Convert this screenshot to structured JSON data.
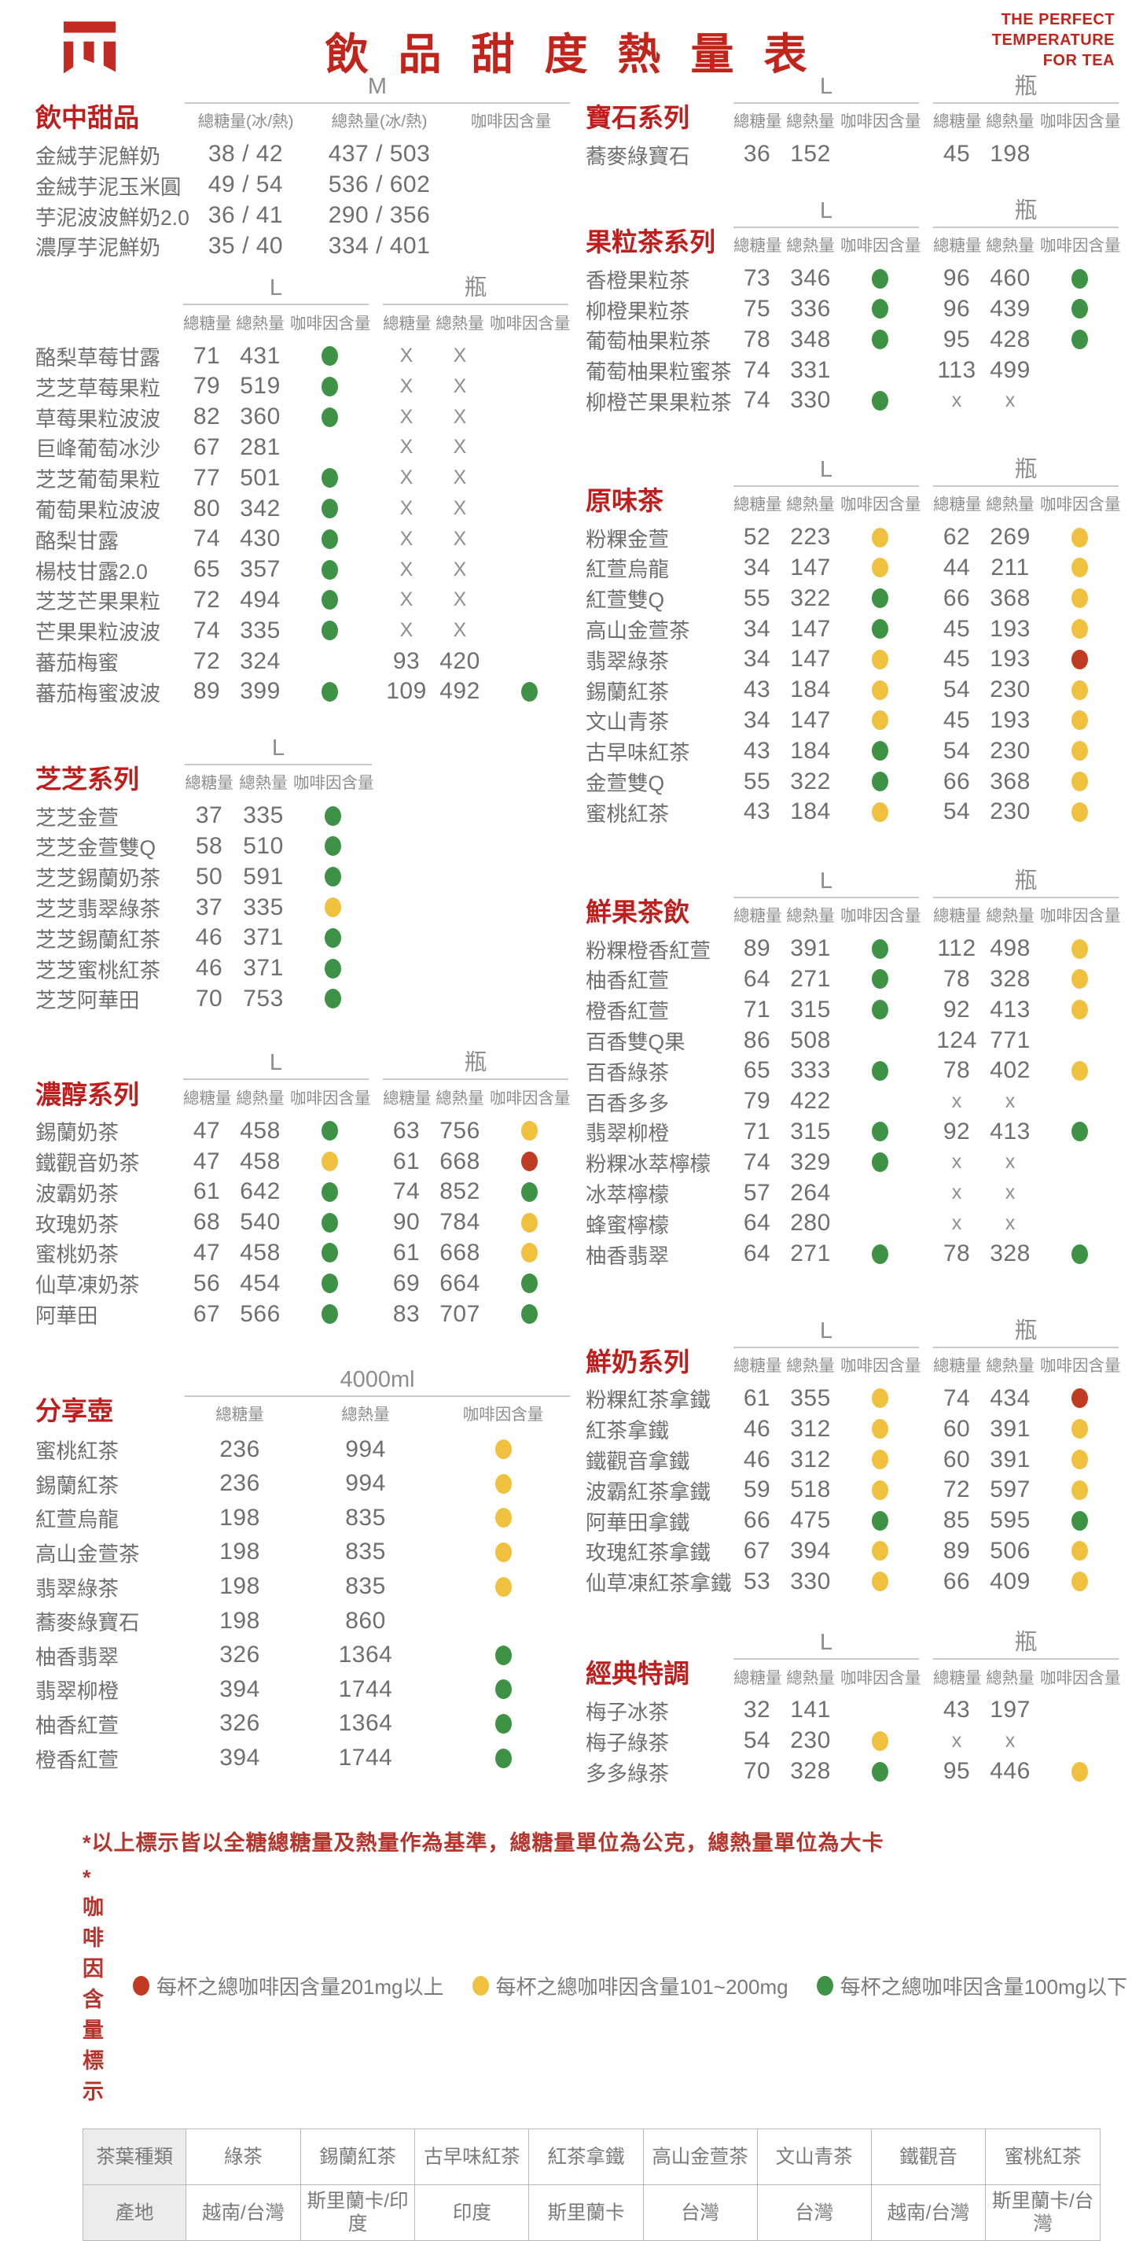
{
  "header": {
    "title": "飲品甜度熱量表",
    "tagline": [
      "THE PERFECT",
      "TEMPERATURE",
      "FOR TEA"
    ]
  },
  "columns": {
    "std": [
      "總糖量",
      "總熱量",
      "咖啡因含量"
    ],
    "m": [
      "總糖量(冰/熱)",
      "總熱量(冰/熱)",
      "咖啡因含量"
    ]
  },
  "colors": {
    "g": "#3e9245",
    "y": "#f0c13f",
    "r": "#c13a22"
  },
  "dot_names": {
    "g": "caffeine-dot-green",
    "y": "caffeine-dot-yellow",
    "r": "caffeine-dot-red"
  },
  "left_blocks": [
    {
      "title": "飲中甜品",
      "layout": "m",
      "groups": [
        "M"
      ],
      "cols": "m",
      "rows": [
        [
          "金絨芋泥鮮奶",
          "38 / 42",
          "437 / 503",
          ""
        ],
        [
          "金絨芋泥玉米圓",
          "49 / 54",
          "536 / 602",
          ""
        ],
        [
          "芋泥波波鮮奶2.0",
          "36 / 41",
          "290 / 356",
          ""
        ],
        [
          "濃厚芋泥鮮奶",
          "35 / 40",
          "334 / 401",
          ""
        ]
      ]
    },
    {
      "title": "",
      "layout": "lb",
      "groups": [
        "L",
        "瓶"
      ],
      "cols": "std",
      "rows": [
        [
          "酪梨草莓甘露",
          "71",
          "431",
          "g",
          "X",
          "X",
          ""
        ],
        [
          "芝芝草莓果粒",
          "79",
          "519",
          "g",
          "X",
          "X",
          ""
        ],
        [
          "草莓果粒波波",
          "82",
          "360",
          "g",
          "X",
          "X",
          ""
        ],
        [
          "巨峰葡萄冰沙",
          "67",
          "281",
          "",
          "X",
          "X",
          ""
        ],
        [
          "芝芝葡萄果粒",
          "77",
          "501",
          "g",
          "X",
          "X",
          ""
        ],
        [
          "葡萄果粒波波",
          "80",
          "342",
          "g",
          "X",
          "X",
          ""
        ],
        [
          "酪梨甘露",
          "74",
          "430",
          "g",
          "X",
          "X",
          ""
        ],
        [
          "楊枝甘露2.0",
          "65",
          "357",
          "g",
          "X",
          "X",
          ""
        ],
        [
          "芝芝芒果果粒",
          "72",
          "494",
          "g",
          "X",
          "X",
          ""
        ],
        [
          "芒果果粒波波",
          "74",
          "335",
          "g",
          "X",
          "X",
          ""
        ],
        [
          "蕃茄梅蜜",
          "72",
          "324",
          "",
          "93",
          "420",
          ""
        ],
        [
          "蕃茄梅蜜波波",
          "89",
          "399",
          "g",
          "109",
          "492",
          "g"
        ]
      ]
    },
    {
      "title": "芝芝系列",
      "layout": "l",
      "groups": [
        "L"
      ],
      "cols": "std",
      "rows": [
        [
          "芝芝金萱",
          "37",
          "335",
          "g"
        ],
        [
          "芝芝金萱雙Q",
          "58",
          "510",
          "g"
        ],
        [
          "芝芝錫蘭奶茶",
          "50",
          "591",
          "g"
        ],
        [
          "芝芝翡翠綠茶",
          "37",
          "335",
          "y"
        ],
        [
          "芝芝錫蘭紅茶",
          "46",
          "371",
          "g"
        ],
        [
          "芝芝蜜桃紅茶",
          "46",
          "371",
          "g"
        ],
        [
          "芝芝阿華田",
          "70",
          "753",
          "g"
        ]
      ]
    },
    {
      "title": "濃醇系列",
      "layout": "lb",
      "groups": [
        "L",
        "瓶"
      ],
      "cols": "std",
      "rows": [
        [
          "錫蘭奶茶",
          "47",
          "458",
          "g",
          "63",
          "756",
          "y"
        ],
        [
          "鐵觀音奶茶",
          "47",
          "458",
          "y",
          "61",
          "668",
          "r"
        ],
        [
          "波霸奶茶",
          "61",
          "642",
          "g",
          "74",
          "852",
          "g"
        ],
        [
          "玫瑰奶茶",
          "68",
          "540",
          "g",
          "90",
          "784",
          "y"
        ],
        [
          "蜜桃奶茶",
          "47",
          "458",
          "g",
          "61",
          "668",
          "y"
        ],
        [
          "仙草凍奶茶",
          "56",
          "454",
          "g",
          "69",
          "664",
          "g"
        ],
        [
          "阿華田",
          "67",
          "566",
          "g",
          "83",
          "707",
          "g"
        ]
      ]
    },
    {
      "title": "分享壺",
      "layout": "jug",
      "groups": [
        "4000ml"
      ],
      "cols": "std",
      "rows": [
        [
          "蜜桃紅茶",
          "236",
          "994",
          "y"
        ],
        [
          "錫蘭紅茶",
          "236",
          "994",
          "y"
        ],
        [
          "紅萱烏龍",
          "198",
          "835",
          "y"
        ],
        [
          "高山金萱茶",
          "198",
          "835",
          "y"
        ],
        [
          "翡翠綠茶",
          "198",
          "835",
          "y"
        ],
        [
          "蕎麥綠寶石",
          "198",
          "860",
          ""
        ],
        [
          "柚香翡翠",
          "326",
          "1364",
          "g"
        ],
        [
          "翡翠柳橙",
          "394",
          "1744",
          "g"
        ],
        [
          "柚香紅萱",
          "326",
          "1364",
          "g"
        ],
        [
          "橙香紅萱",
          "394",
          "1744",
          "g"
        ]
      ]
    }
  ],
  "right_blocks": [
    {
      "title": "寶石系列",
      "layout": "lb",
      "groups": [
        "L",
        "瓶"
      ],
      "cols": "std",
      "rows": [
        [
          "蕎麥綠寶石",
          "36",
          "152",
          "",
          "45",
          "198",
          ""
        ]
      ]
    },
    {
      "title": "果粒茶系列",
      "layout": "lb",
      "groups": [
        "L",
        "瓶"
      ],
      "cols": "std",
      "rows": [
        [
          "香橙果粒茶",
          "73",
          "346",
          "g",
          "96",
          "460",
          "g"
        ],
        [
          "柳橙果粒茶",
          "75",
          "336",
          "g",
          "96",
          "439",
          "g"
        ],
        [
          "葡萄柚果粒茶",
          "78",
          "348",
          "g",
          "95",
          "428",
          "g"
        ],
        [
          "葡萄柚果粒蜜茶",
          "74",
          "331",
          "",
          "113",
          "499",
          ""
        ],
        [
          "柳橙芒果果粒茶",
          "74",
          "330",
          "g",
          "x",
          "x",
          ""
        ]
      ]
    },
    {
      "title": "原味茶",
      "layout": "lb",
      "groups": [
        "L",
        "瓶"
      ],
      "cols": "std",
      "rows": [
        [
          "粉粿金萱",
          "52",
          "223",
          "y",
          "62",
          "269",
          "y"
        ],
        [
          "紅萱烏龍",
          "34",
          "147",
          "y",
          "44",
          "211",
          "y"
        ],
        [
          "紅萱雙Q",
          "55",
          "322",
          "g",
          "66",
          "368",
          "y"
        ],
        [
          "高山金萱茶",
          "34",
          "147",
          "g",
          "45",
          "193",
          "y"
        ],
        [
          "翡翠綠茶",
          "34",
          "147",
          "y",
          "45",
          "193",
          "r"
        ],
        [
          "錫蘭紅茶",
          "43",
          "184",
          "y",
          "54",
          "230",
          "y"
        ],
        [
          "文山青茶",
          "34",
          "147",
          "y",
          "45",
          "193",
          "y"
        ],
        [
          "古早味紅茶",
          "43",
          "184",
          "g",
          "54",
          "230",
          "y"
        ],
        [
          "金萱雙Q",
          "55",
          "322",
          "g",
          "66",
          "368",
          "y"
        ],
        [
          "蜜桃紅茶",
          "43",
          "184",
          "y",
          "54",
          "230",
          "y"
        ]
      ]
    },
    {
      "title": "鮮果茶飲",
      "layout": "lb",
      "groups": [
        "L",
        "瓶"
      ],
      "cols": "std",
      "rows": [
        [
          "粉粿橙香紅萱",
          "89",
          "391",
          "g",
          "112",
          "498",
          "y"
        ],
        [
          "柚香紅萱",
          "64",
          "271",
          "g",
          "78",
          "328",
          "y"
        ],
        [
          "橙香紅萱",
          "71",
          "315",
          "g",
          "92",
          "413",
          "y"
        ],
        [
          "百香雙Q果",
          "86",
          "508",
          "",
          "124",
          "771",
          ""
        ],
        [
          "百香綠茶",
          "65",
          "333",
          "g",
          "78",
          "402",
          "y"
        ],
        [
          "百香多多",
          "79",
          "422",
          "",
          "x",
          "x",
          ""
        ],
        [
          "翡翠柳橙",
          "71",
          "315",
          "g",
          "92",
          "413",
          "g"
        ],
        [
          "粉粿冰萃檸檬",
          "74",
          "329",
          "g",
          "x",
          "x",
          ""
        ],
        [
          "冰萃檸檬",
          "57",
          "264",
          "",
          "x",
          "x",
          ""
        ],
        [
          "蜂蜜檸檬",
          "64",
          "280",
          "",
          "x",
          "x",
          ""
        ],
        [
          "柚香翡翠",
          "64",
          "271",
          "g",
          "78",
          "328",
          "g"
        ]
      ]
    },
    {
      "title": "鮮奶系列",
      "layout": "lb",
      "groups": [
        "L",
        "瓶"
      ],
      "cols": "std",
      "rows": [
        [
          "粉粿紅茶拿鐵",
          "61",
          "355",
          "y",
          "74",
          "434",
          "r"
        ],
        [
          "紅茶拿鐵",
          "46",
          "312",
          "y",
          "60",
          "391",
          "y"
        ],
        [
          "鐵觀音拿鐵",
          "46",
          "312",
          "y",
          "60",
          "391",
          "y"
        ],
        [
          "波霸紅茶拿鐵",
          "59",
          "518",
          "y",
          "72",
          "597",
          "y"
        ],
        [
          "阿華田拿鐵",
          "66",
          "475",
          "g",
          "85",
          "595",
          "g"
        ],
        [
          "玫瑰紅茶拿鐵",
          "67",
          "394",
          "y",
          "89",
          "506",
          "y"
        ],
        [
          "仙草凍紅茶拿鐵",
          "53",
          "330",
          "y",
          "66",
          "409",
          "y"
        ]
      ]
    },
    {
      "title": "經典特調",
      "layout": "lb",
      "groups": [
        "L",
        "瓶"
      ],
      "cols": "std",
      "rows": [
        [
          "梅子冰茶",
          "32",
          "141",
          "",
          "43",
          "197",
          ""
        ],
        [
          "梅子綠茶",
          "54",
          "230",
          "y",
          "x",
          "x",
          ""
        ],
        [
          "多多綠茶",
          "70",
          "328",
          "g",
          "95",
          "446",
          "y"
        ]
      ]
    }
  ],
  "footer": {
    "note1": "*以上標示皆以全糖總糖量及熱量作為基準，總糖量單位為公克，總熱量單位為大卡",
    "legend_label": "*咖啡因含量標示",
    "legend": [
      {
        "color": "r",
        "label": "每杯之總咖啡因含量201mg以上"
      },
      {
        "color": "y",
        "label": "每杯之總咖啡因含量101~200mg"
      },
      {
        "color": "g",
        "label": "每杯之總咖啡因含量100mg以下"
      }
    ]
  },
  "origin_table": {
    "rows": [
      [
        "茶葉種類",
        "綠茶",
        "錫蘭紅茶",
        "古早味紅茶",
        "紅茶拿鐵",
        "高山金萱茶",
        "文山青茶",
        "鐵觀音",
        "蜜桃紅茶"
      ],
      [
        "產地",
        "越南/台灣",
        "斯里蘭卡/印度",
        "印度",
        "斯里蘭卡",
        "台灣",
        "台灣",
        "越南/台灣",
        "斯里蘭卡/台灣"
      ]
    ]
  }
}
